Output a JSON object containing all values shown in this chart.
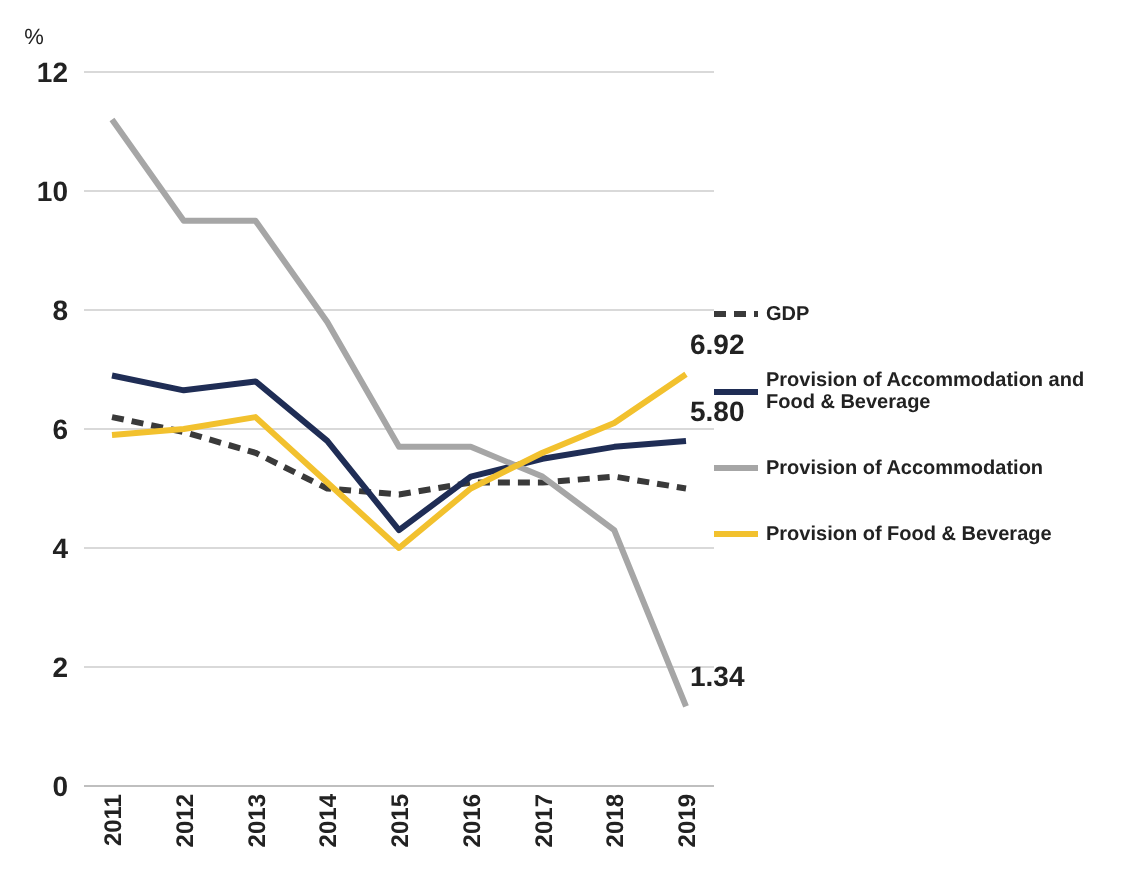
{
  "chart_data": {
    "type": "line",
    "ylabel": "%",
    "categories": [
      "2011",
      "2012",
      "2013",
      "2014",
      "2015",
      "2016",
      "2017",
      "2018",
      "2019"
    ],
    "ylim": [
      0,
      12
    ],
    "yticks": [
      0,
      2,
      4,
      6,
      8,
      10,
      12
    ],
    "grid": "y",
    "legend": "right",
    "marker": "none",
    "series": [
      {
        "name": "GDP",
        "color": "#3a3a3a",
        "line_style": "dashed",
        "values": [
          6.2,
          5.95,
          5.6,
          5.0,
          4.9,
          5.1,
          5.1,
          5.2,
          5.0
        ]
      },
      {
        "name": "Provision of Accommodation and Food & Beverage",
        "color": "#1f2d55",
        "line_style": "solid",
        "values": [
          6.9,
          6.65,
          6.8,
          5.8,
          4.3,
          5.2,
          5.5,
          5.7,
          5.8
        ],
        "value_labels": [
          null,
          null,
          null,
          null,
          null,
          null,
          null,
          null,
          "5.80"
        ]
      },
      {
        "name": "Provision of Accommodation",
        "color": "#a6a6a6",
        "line_style": "solid",
        "values": [
          11.2,
          9.5,
          9.5,
          7.8,
          5.7,
          5.7,
          5.2,
          4.3,
          1.34
        ],
        "value_labels": [
          null,
          null,
          null,
          null,
          null,
          null,
          null,
          null,
          "1.34"
        ]
      },
      {
        "name": "Provision of Food & Beverage",
        "color": "#f2c12e",
        "line_style": "solid",
        "values": [
          5.9,
          6.0,
          6.2,
          5.1,
          4.0,
          5.0,
          5.6,
          6.1,
          6.92
        ],
        "value_labels": [
          null,
          null,
          null,
          null,
          null,
          null,
          null,
          null,
          "6.92"
        ]
      }
    ]
  }
}
